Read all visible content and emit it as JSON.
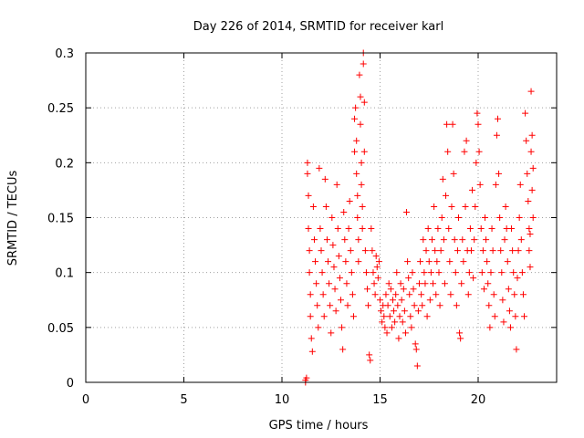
{
  "chart_data": {
    "type": "scatter",
    "title": "Day 226 of 2014, SRMTID for receiver karl",
    "xlabel": "GPS time / hours",
    "ylabel": "SRMTID / TECUs",
    "xlim": [
      0,
      24
    ],
    "ylim": [
      0,
      0.3
    ],
    "xticks": [
      0,
      5,
      10,
      15,
      20
    ],
    "yticks": [
      0,
      0.05,
      0.1,
      0.15,
      0.2,
      0.25,
      0.3
    ],
    "xtick_labels": [
      "0",
      "5",
      "10",
      "15",
      "20"
    ],
    "ytick_labels": [
      "0",
      "0.05",
      "0.1",
      "0.15",
      "0.2",
      "0.25",
      "0.3"
    ],
    "grid": true,
    "marker": "+",
    "color": "#ff0000",
    "series": [
      {
        "name": "SRMTID",
        "points": [
          [
            11.2,
            0.0
          ],
          [
            11.2,
            0.002
          ],
          [
            11.25,
            0.004
          ],
          [
            11.3,
            0.2
          ],
          [
            11.3,
            0.19
          ],
          [
            11.35,
            0.17
          ],
          [
            11.35,
            0.14
          ],
          [
            11.4,
            0.12
          ],
          [
            11.4,
            0.1
          ],
          [
            11.45,
            0.08
          ],
          [
            11.45,
            0.06
          ],
          [
            11.5,
            0.04
          ],
          [
            11.55,
            0.028
          ],
          [
            11.6,
            0.16
          ],
          [
            11.65,
            0.13
          ],
          [
            11.7,
            0.11
          ],
          [
            11.75,
            0.09
          ],
          [
            11.8,
            0.07
          ],
          [
            11.85,
            0.05
          ],
          [
            11.9,
            0.195
          ],
          [
            11.95,
            0.14
          ],
          [
            12.0,
            0.12
          ],
          [
            12.05,
            0.1
          ],
          [
            12.1,
            0.08
          ],
          [
            12.15,
            0.06
          ],
          [
            12.2,
            0.185
          ],
          [
            12.25,
            0.16
          ],
          [
            12.3,
            0.13
          ],
          [
            12.35,
            0.11
          ],
          [
            12.4,
            0.09
          ],
          [
            12.45,
            0.07
          ],
          [
            12.5,
            0.045
          ],
          [
            12.55,
            0.15
          ],
          [
            12.6,
            0.125
          ],
          [
            12.65,
            0.105
          ],
          [
            12.7,
            0.085
          ],
          [
            12.75,
            0.065
          ],
          [
            12.8,
            0.18
          ],
          [
            12.85,
            0.14
          ],
          [
            12.9,
            0.115
          ],
          [
            12.95,
            0.095
          ],
          [
            13.0,
            0.075
          ],
          [
            13.05,
            0.05
          ],
          [
            13.1,
            0.03
          ],
          [
            13.15,
            0.155
          ],
          [
            13.2,
            0.13
          ],
          [
            13.25,
            0.11
          ],
          [
            13.3,
            0.09
          ],
          [
            13.35,
            0.07
          ],
          [
            13.4,
            0.14
          ],
          [
            13.45,
            0.165
          ],
          [
            13.5,
            0.12
          ],
          [
            13.55,
            0.1
          ],
          [
            13.6,
            0.08
          ],
          [
            13.65,
            0.06
          ],
          [
            13.7,
            0.21
          ],
          [
            13.7,
            0.24
          ],
          [
            13.75,
            0.25
          ],
          [
            13.8,
            0.22
          ],
          [
            13.8,
            0.19
          ],
          [
            13.85,
            0.17
          ],
          [
            13.85,
            0.15
          ],
          [
            13.9,
            0.13
          ],
          [
            13.9,
            0.11
          ],
          [
            13.95,
            0.28
          ],
          [
            14.0,
            0.26
          ],
          [
            14.0,
            0.235
          ],
          [
            14.05,
            0.2
          ],
          [
            14.05,
            0.18
          ],
          [
            14.1,
            0.16
          ],
          [
            14.1,
            0.14
          ],
          [
            14.15,
            0.3
          ],
          [
            14.15,
            0.29
          ],
          [
            14.2,
            0.255
          ],
          [
            14.2,
            0.21
          ],
          [
            14.25,
            0.12
          ],
          [
            14.3,
            0.1
          ],
          [
            14.35,
            0.085
          ],
          [
            14.4,
            0.07
          ],
          [
            14.45,
            0.025
          ],
          [
            14.5,
            0.02
          ],
          [
            14.55,
            0.14
          ],
          [
            14.6,
            0.12
          ],
          [
            14.65,
            0.1
          ],
          [
            14.7,
            0.09
          ],
          [
            14.75,
            0.08
          ],
          [
            14.8,
            0.115
          ],
          [
            14.85,
            0.105
          ],
          [
            14.9,
            0.095
          ],
          [
            14.95,
            0.11
          ],
          [
            15.0,
            0.075
          ],
          [
            15.05,
            0.065
          ],
          [
            15.1,
            0.055
          ],
          [
            15.15,
            0.07
          ],
          [
            15.2,
            0.06
          ],
          [
            15.25,
            0.05
          ],
          [
            15.3,
            0.08
          ],
          [
            15.35,
            0.045
          ],
          [
            15.4,
            0.07
          ],
          [
            15.45,
            0.09
          ],
          [
            15.5,
            0.06
          ],
          [
            15.55,
            0.085
          ],
          [
            15.6,
            0.05
          ],
          [
            15.65,
            0.075
          ],
          [
            15.7,
            0.065
          ],
          [
            15.75,
            0.055
          ],
          [
            15.8,
            0.08
          ],
          [
            15.85,
            0.1
          ],
          [
            15.9,
            0.07
          ],
          [
            15.95,
            0.04
          ],
          [
            16.0,
            0.06
          ],
          [
            16.05,
            0.09
          ],
          [
            16.1,
            0.075
          ],
          [
            16.15,
            0.055
          ],
          [
            16.2,
            0.085
          ],
          [
            16.25,
            0.065
          ],
          [
            16.3,
            0.045
          ],
          [
            16.35,
            0.155
          ],
          [
            16.4,
            0.11
          ],
          [
            16.45,
            0.095
          ],
          [
            16.5,
            0.08
          ],
          [
            16.55,
            0.06
          ],
          [
            16.6,
            0.05
          ],
          [
            16.65,
            0.1
          ],
          [
            16.7,
            0.085
          ],
          [
            16.75,
            0.07
          ],
          [
            16.8,
            0.035
          ],
          [
            16.85,
            0.03
          ],
          [
            16.9,
            0.015
          ],
          [
            16.95,
            0.065
          ],
          [
            17.0,
            0.09
          ],
          [
            17.05,
            0.11
          ],
          [
            17.1,
            0.08
          ],
          [
            17.15,
            0.07
          ],
          [
            17.2,
            0.13
          ],
          [
            17.25,
            0.1
          ],
          [
            17.3,
            0.09
          ],
          [
            17.35,
            0.12
          ],
          [
            17.4,
            0.06
          ],
          [
            17.45,
            0.14
          ],
          [
            17.5,
            0.11
          ],
          [
            17.55,
            0.075
          ],
          [
            17.6,
            0.1
          ],
          [
            17.65,
            0.13
          ],
          [
            17.7,
            0.09
          ],
          [
            17.75,
            0.16
          ],
          [
            17.8,
            0.12
          ],
          [
            17.85,
            0.08
          ],
          [
            17.9,
            0.11
          ],
          [
            17.95,
            0.14
          ],
          [
            18.0,
            0.1
          ],
          [
            18.05,
            0.07
          ],
          [
            18.1,
            0.12
          ],
          [
            18.15,
            0.15
          ],
          [
            18.2,
            0.185
          ],
          [
            18.25,
            0.13
          ],
          [
            18.3,
            0.09
          ],
          [
            18.35,
            0.17
          ],
          [
            18.4,
            0.235
          ],
          [
            18.45,
            0.21
          ],
          [
            18.5,
            0.14
          ],
          [
            18.55,
            0.11
          ],
          [
            18.6,
            0.08
          ],
          [
            18.65,
            0.16
          ],
          [
            18.7,
            0.235
          ],
          [
            18.75,
            0.19
          ],
          [
            18.8,
            0.13
          ],
          [
            18.85,
            0.1
          ],
          [
            18.9,
            0.07
          ],
          [
            18.95,
            0.12
          ],
          [
            19.0,
            0.15
          ],
          [
            19.05,
            0.045
          ],
          [
            19.1,
            0.04
          ],
          [
            19.15,
            0.09
          ],
          [
            19.2,
            0.13
          ],
          [
            19.25,
            0.11
          ],
          [
            19.3,
            0.21
          ],
          [
            19.35,
            0.16
          ],
          [
            19.4,
            0.22
          ],
          [
            19.45,
            0.12
          ],
          [
            19.5,
            0.08
          ],
          [
            19.55,
            0.1
          ],
          [
            19.6,
            0.14
          ],
          [
            19.65,
            0.12
          ],
          [
            19.7,
            0.175
          ],
          [
            19.75,
            0.095
          ],
          [
            19.8,
            0.13
          ],
          [
            19.85,
            0.16
          ],
          [
            19.9,
            0.2
          ],
          [
            19.95,
            0.245
          ],
          [
            20.0,
            0.235
          ],
          [
            20.05,
            0.21
          ],
          [
            20.1,
            0.18
          ],
          [
            20.15,
            0.14
          ],
          [
            20.2,
            0.1
          ],
          [
            20.25,
            0.12
          ],
          [
            20.3,
            0.085
          ],
          [
            20.35,
            0.15
          ],
          [
            20.4,
            0.13
          ],
          [
            20.45,
            0.11
          ],
          [
            20.5,
            0.09
          ],
          [
            20.55,
            0.07
          ],
          [
            20.6,
            0.05
          ],
          [
            20.65,
            0.1
          ],
          [
            20.7,
            0.14
          ],
          [
            20.75,
            0.12
          ],
          [
            20.8,
            0.08
          ],
          [
            20.85,
            0.06
          ],
          [
            20.9,
            0.18
          ],
          [
            20.95,
            0.225
          ],
          [
            21.0,
            0.24
          ],
          [
            21.05,
            0.19
          ],
          [
            21.1,
            0.15
          ],
          [
            21.15,
            0.12
          ],
          [
            21.2,
            0.1
          ],
          [
            21.25,
            0.075
          ],
          [
            21.3,
            0.055
          ],
          [
            21.35,
            0.13
          ],
          [
            21.4,
            0.16
          ],
          [
            21.45,
            0.14
          ],
          [
            21.5,
            0.11
          ],
          [
            21.55,
            0.085
          ],
          [
            21.6,
            0.065
          ],
          [
            21.65,
            0.05
          ],
          [
            21.7,
            0.14
          ],
          [
            21.75,
            0.12
          ],
          [
            21.8,
            0.1
          ],
          [
            21.85,
            0.08
          ],
          [
            21.9,
            0.06
          ],
          [
            21.95,
            0.03
          ],
          [
            22.0,
            0.095
          ],
          [
            22.05,
            0.12
          ],
          [
            22.1,
            0.15
          ],
          [
            22.15,
            0.18
          ],
          [
            22.2,
            0.13
          ],
          [
            22.25,
            0.1
          ],
          [
            22.3,
            0.08
          ],
          [
            22.35,
            0.06
          ],
          [
            22.4,
            0.245
          ],
          [
            22.45,
            0.22
          ],
          [
            22.5,
            0.19
          ],
          [
            22.55,
            0.165
          ],
          [
            22.6,
            0.14
          ],
          [
            22.6,
            0.12
          ],
          [
            22.65,
            0.105
          ],
          [
            22.65,
            0.135
          ],
          [
            22.7,
            0.21
          ],
          [
            22.7,
            0.265
          ],
          [
            22.75,
            0.225
          ],
          [
            22.75,
            0.175
          ],
          [
            22.8,
            0.195
          ],
          [
            22.8,
            0.15
          ]
        ]
      }
    ]
  }
}
